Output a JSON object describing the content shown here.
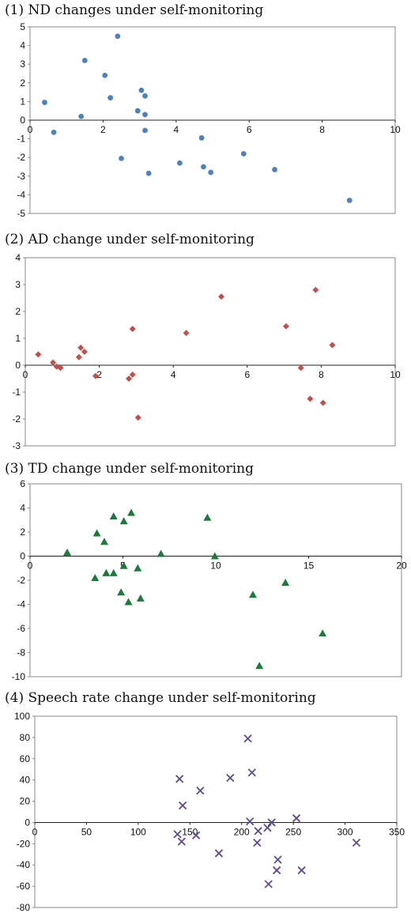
{
  "chart_data": [
    {
      "type": "scatter",
      "title": "(1) ND changes under self-monitoring",
      "xlabel": "",
      "ylabel": "",
      "xlim": [
        0,
        10
      ],
      "ylim": [
        -5,
        5
      ],
      "xticks": [
        0,
        2,
        4,
        6,
        8,
        10
      ],
      "yticks": [
        5,
        4,
        3,
        2,
        1,
        0,
        -1,
        -2,
        -3,
        -4,
        -5
      ],
      "grid": false,
      "marker": "circle",
      "color": "#4f81bd",
      "points": [
        {
          "x": 0.4,
          "y": 0.95
        },
        {
          "x": 0.65,
          "y": -0.65
        },
        {
          "x": 1.4,
          "y": 0.2
        },
        {
          "x": 1.5,
          "y": 3.2
        },
        {
          "x": 2.05,
          "y": 2.4
        },
        {
          "x": 2.2,
          "y": 1.2
        },
        {
          "x": 2.4,
          "y": 4.5
        },
        {
          "x": 2.5,
          "y": -2.05
        },
        {
          "x": 2.95,
          "y": 0.5
        },
        {
          "x": 3.05,
          "y": 1.6
        },
        {
          "x": 3.15,
          "y": 1.3
        },
        {
          "x": 3.15,
          "y": 0.3
        },
        {
          "x": 3.15,
          "y": -0.55
        },
        {
          "x": 3.25,
          "y": -2.85
        },
        {
          "x": 4.1,
          "y": -2.3
        },
        {
          "x": 4.7,
          "y": -0.95
        },
        {
          "x": 4.75,
          "y": -2.5
        },
        {
          "x": 4.95,
          "y": -2.8
        },
        {
          "x": 5.85,
          "y": -1.8
        },
        {
          "x": 6.7,
          "y": -2.65
        },
        {
          "x": 8.75,
          "y": -4.3
        }
      ]
    },
    {
      "type": "scatter",
      "title": "(2) AD change under self-monitoring",
      "xlabel": "",
      "ylabel": "",
      "xlim": [
        0,
        10
      ],
      "ylim": [
        -3,
        4
      ],
      "xticks": [
        0,
        2,
        4,
        6,
        8,
        10
      ],
      "yticks": [
        4,
        3,
        2,
        1,
        0,
        -1,
        -2,
        -3
      ],
      "grid": false,
      "marker": "diamond",
      "color": "#c0504d",
      "points": [
        {
          "x": 0.35,
          "y": 0.4
        },
        {
          "x": 0.75,
          "y": 0.1
        },
        {
          "x": 0.85,
          "y": -0.05
        },
        {
          "x": 0.95,
          "y": -0.1
        },
        {
          "x": 1.45,
          "y": 0.3
        },
        {
          "x": 1.5,
          "y": 0.65
        },
        {
          "x": 1.6,
          "y": 0.5
        },
        {
          "x": 1.9,
          "y": -0.4
        },
        {
          "x": 2.8,
          "y": -0.5
        },
        {
          "x": 2.9,
          "y": -0.35
        },
        {
          "x": 2.9,
          "y": 1.35
        },
        {
          "x": 3.05,
          "y": -1.95
        },
        {
          "x": 4.35,
          "y": 1.2
        },
        {
          "x": 5.3,
          "y": 2.55
        },
        {
          "x": 7.05,
          "y": 1.45
        },
        {
          "x": 7.45,
          "y": -0.1
        },
        {
          "x": 7.7,
          "y": -1.25
        },
        {
          "x": 7.85,
          "y": 2.8
        },
        {
          "x": 8.05,
          "y": -1.4
        },
        {
          "x": 8.3,
          "y": 0.75
        }
      ]
    },
    {
      "type": "scatter",
      "title": "(3) TD change under self-monitoring",
      "xlabel": "",
      "ylabel": "",
      "xlim": [
        0,
        20
      ],
      "ylim": [
        -10,
        6
      ],
      "xticks": [
        0,
        5,
        10,
        15,
        20
      ],
      "yticks": [
        6,
        4,
        2,
        0,
        -2,
        -4,
        -6,
        -8,
        -10
      ],
      "grid": false,
      "marker": "triangle",
      "color": "#1e7a3c",
      "points": [
        {
          "x": 2.0,
          "y": 0.3
        },
        {
          "x": 3.5,
          "y": -1.8
        },
        {
          "x": 3.6,
          "y": 1.9
        },
        {
          "x": 4.0,
          "y": 1.2
        },
        {
          "x": 4.1,
          "y": -1.4
        },
        {
          "x": 4.5,
          "y": -1.4
        },
        {
          "x": 4.5,
          "y": 3.3
        },
        {
          "x": 4.9,
          "y": -3.0
        },
        {
          "x": 5.05,
          "y": -0.8
        },
        {
          "x": 5.05,
          "y": 2.9
        },
        {
          "x": 5.3,
          "y": -3.8
        },
        {
          "x": 5.45,
          "y": 3.6
        },
        {
          "x": 5.8,
          "y": -1.0
        },
        {
          "x": 5.95,
          "y": -3.5
        },
        {
          "x": 7.05,
          "y": 0.2
        },
        {
          "x": 9.55,
          "y": 3.2
        },
        {
          "x": 9.95,
          "y": 0.0
        },
        {
          "x": 12.0,
          "y": -3.2
        },
        {
          "x": 12.35,
          "y": -9.1
        },
        {
          "x": 13.75,
          "y": -2.2
        },
        {
          "x": 15.75,
          "y": -6.4
        }
      ]
    },
    {
      "type": "scatter",
      "title": "(4) Speech rate change under self-monitoring",
      "xlabel": "",
      "ylabel": "",
      "xlim": [
        0,
        350
      ],
      "ylim": [
        -80,
        100
      ],
      "xticks": [
        0,
        50,
        100,
        150,
        200,
        250,
        300,
        350
      ],
      "yticks": [
        100,
        80,
        60,
        40,
        20,
        0,
        -20,
        -40,
        -60,
        -80
      ],
      "grid": false,
      "marker": "x",
      "color": "#5f4b8b",
      "points": [
        {
          "x": 138,
          "y": -11
        },
        {
          "x": 140,
          "y": 41
        },
        {
          "x": 142,
          "y": -18
        },
        {
          "x": 143,
          "y": 16
        },
        {
          "x": 156,
          "y": -12
        },
        {
          "x": 160,
          "y": 30
        },
        {
          "x": 178,
          "y": -29
        },
        {
          "x": 189,
          "y": 42
        },
        {
          "x": 206,
          "y": 79
        },
        {
          "x": 208,
          "y": 1
        },
        {
          "x": 210,
          "y": 47
        },
        {
          "x": 215,
          "y": -19
        },
        {
          "x": 216,
          "y": -8
        },
        {
          "x": 225,
          "y": -5
        },
        {
          "x": 226,
          "y": -58
        },
        {
          "x": 229,
          "y": 0
        },
        {
          "x": 234,
          "y": -45
        },
        {
          "x": 235,
          "y": -35
        },
        {
          "x": 253,
          "y": 4
        },
        {
          "x": 258,
          "y": -45
        },
        {
          "x": 311,
          "y": -19
        }
      ]
    }
  ]
}
